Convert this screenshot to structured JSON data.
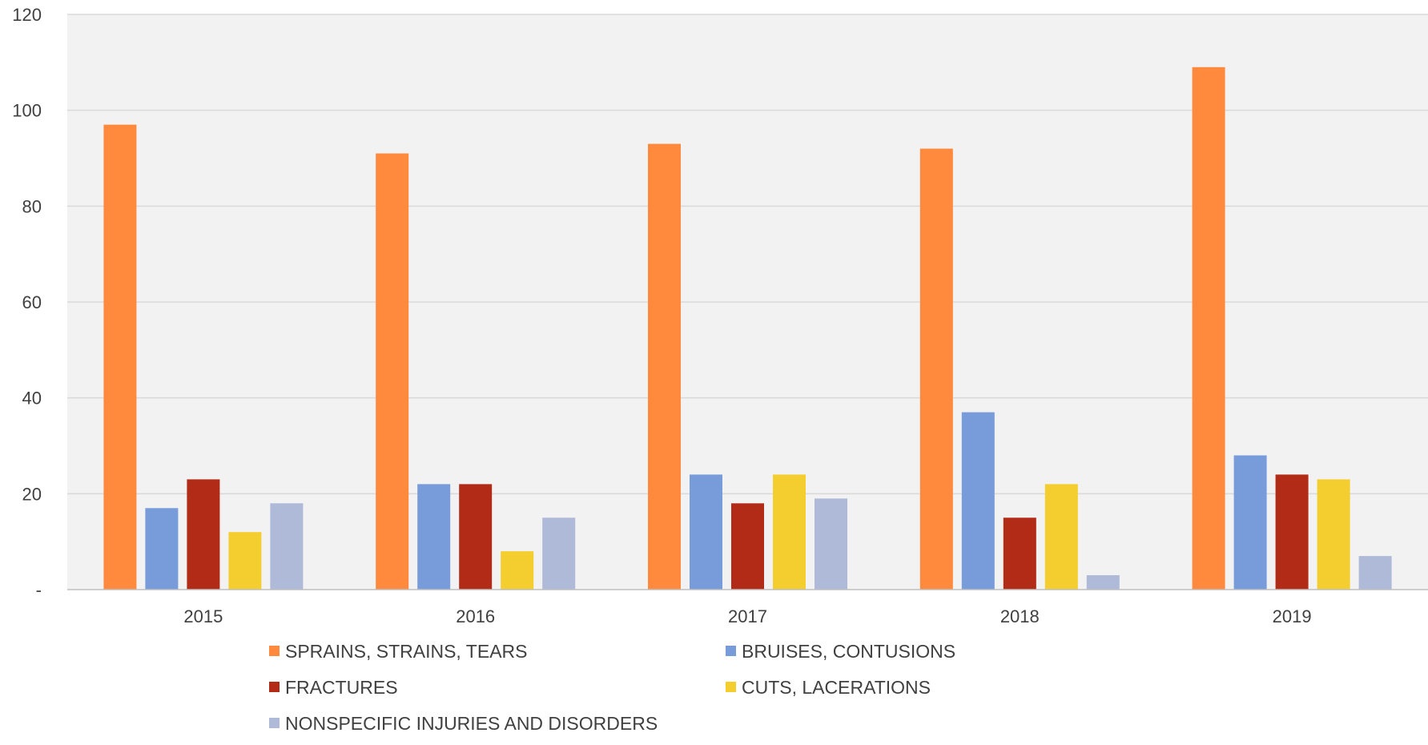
{
  "chart_data": {
    "type": "bar",
    "title": "",
    "xlabel": "",
    "ylabel": "",
    "categories": [
      "2015",
      "2016",
      "2017",
      "2018",
      "2019"
    ],
    "ylim": [
      0,
      120
    ],
    "y_ticks": [
      0,
      20,
      40,
      60,
      80,
      100,
      120
    ],
    "y_tick_labels": [
      "-",
      "20",
      "40",
      "60",
      "80",
      "100",
      "120"
    ],
    "grid": true,
    "legend_position": "bottom",
    "series": [
      {
        "name": "SPRAINS, STRAINS, TEARS",
        "color": "#FF8A3D",
        "values": [
          97,
          91,
          93,
          92,
          109
        ]
      },
      {
        "name": "BRUISES, CONTUSIONS",
        "color": "#789BDA",
        "values": [
          17,
          22,
          24,
          37,
          28
        ]
      },
      {
        "name": "FRACTURES",
        "color": "#B22B17",
        "values": [
          23,
          22,
          18,
          15,
          24
        ]
      },
      {
        "name": "CUTS, LACERATIONS",
        "color": "#F4CD2E",
        "values": [
          12,
          8,
          24,
          22,
          23
        ]
      },
      {
        "name": "NONSPECIFIC INJURIES AND DISORDERS",
        "color": "#AEBAD8",
        "values": [
          18,
          15,
          19,
          3,
          7
        ]
      }
    ],
    "plot_background": "#F2F2F2",
    "gridline_color": "#D9D9D9"
  }
}
